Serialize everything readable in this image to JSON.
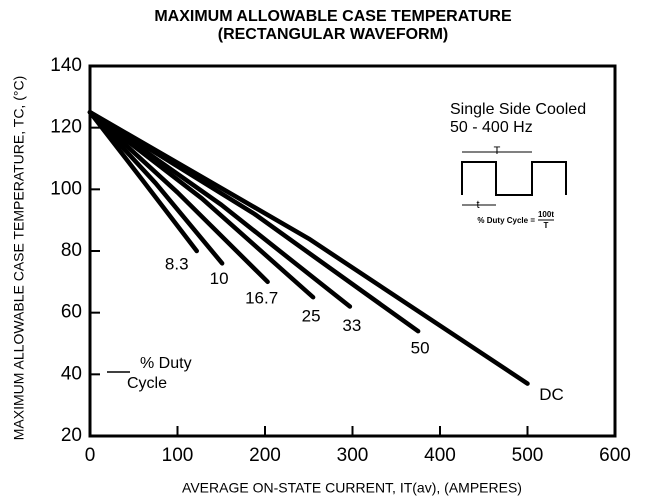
{
  "chart_data": {
    "type": "line",
    "title": "MAXIMUM ALLOWABLE CASE TEMPERATURE",
    "subtitle": "(RECTANGULAR WAVEFORM)",
    "x_label": "AVERAGE ON-STATE CURRENT, IT(av), (AMPERES)",
    "y_label": "MAXIMUM ALLOWABLE CASE TEMPERATURE, TC, (°C)",
    "xlim": [
      0,
      600
    ],
    "xticks": [
      0,
      100,
      200,
      300,
      400,
      500,
      600
    ],
    "ylim": [
      20,
      140
    ],
    "yticks": [
      20,
      40,
      60,
      80,
      100,
      120,
      140
    ],
    "grid": false,
    "series": [
      {
        "name": "8.3",
        "color": "#000000",
        "x": [
          0,
          60,
          122
        ],
        "values": [
          125,
          103,
          80
        ]
      },
      {
        "name": "10",
        "color": "#000000",
        "x": [
          0,
          75,
          151
        ],
        "values": [
          125,
          102,
          76
        ]
      },
      {
        "name": "16.7",
        "color": "#000000",
        "x": [
          0,
          100,
          203
        ],
        "values": [
          125,
          99,
          70
        ]
      },
      {
        "name": "25",
        "color": "#000000",
        "x": [
          0,
          128,
          255
        ],
        "values": [
          125,
          97,
          65
        ]
      },
      {
        "name": "33",
        "color": "#000000",
        "x": [
          0,
          150,
          297
        ],
        "values": [
          125,
          95,
          62
        ]
      },
      {
        "name": "50",
        "color": "#000000",
        "x": [
          0,
          188,
          375
        ],
        "values": [
          125,
          92,
          54
        ]
      },
      {
        "name": "DC",
        "color": "#000000",
        "x": [
          0,
          250,
          500
        ],
        "values": [
          125,
          84,
          37
        ]
      }
    ],
    "annotations": [
      "Single Side Cooled",
      "50 - 400 Hz",
      "% Duty",
      "Cycle"
    ],
    "inset": {
      "period_label": "T",
      "pulse_label": "t",
      "formula": "% Duty Cycle =",
      "numerator": "100t",
      "denominator": "T"
    }
  }
}
